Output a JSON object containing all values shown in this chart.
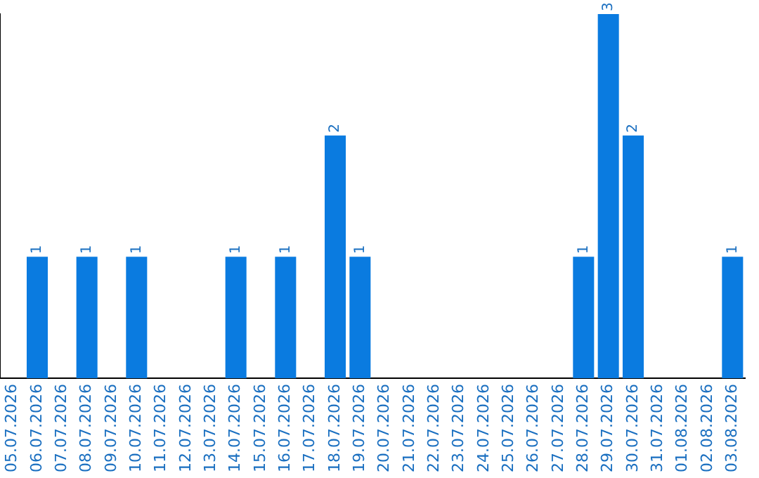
{
  "chart_data": {
    "type": "bar",
    "categories": [
      "05.07.2026",
      "06.07.2026",
      "07.07.2026",
      "08.07.2026",
      "09.07.2026",
      "10.07.2026",
      "11.07.2026",
      "12.07.2026",
      "13.07.2026",
      "14.07.2026",
      "15.07.2026",
      "16.07.2026",
      "17.07.2026",
      "18.07.2026",
      "19.07.2026",
      "20.07.2026",
      "21.07.2026",
      "22.07.2026",
      "23.07.2026",
      "24.07.2026",
      "25.07.2026",
      "26.07.2026",
      "27.07.2026",
      "28.07.2026",
      "29.07.2026",
      "30.07.2026",
      "31.07.2026",
      "01.08.2026",
      "02.08.2026",
      "03.08.2026"
    ],
    "values": [
      null,
      1,
      null,
      1,
      null,
      1,
      null,
      null,
      null,
      1,
      null,
      1,
      null,
      2,
      1,
      null,
      null,
      null,
      null,
      null,
      null,
      null,
      null,
      1,
      3,
      2,
      null,
      null,
      null,
      1
    ],
    "color": "#0a7be0",
    "data_labels": true,
    "grid": false,
    "legend": false,
    "tick_labels": "x"
  }
}
